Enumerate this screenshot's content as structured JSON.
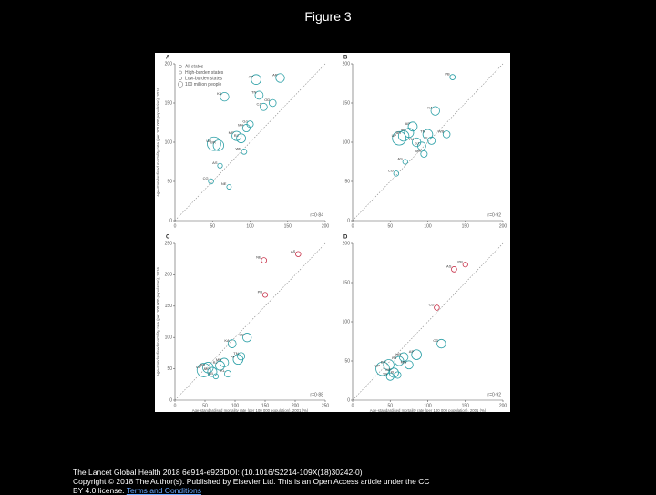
{
  "title": "Figure 3",
  "chart_data": [
    {
      "type": "scatter",
      "panel": "A",
      "xlim": [
        0,
        200
      ],
      "ylim": [
        0,
        200
      ],
      "xticks": [
        0,
        50,
        100,
        150,
        200
      ],
      "yticks": [
        0,
        50,
        100,
        150,
        200
      ],
      "ylabel": "Age-standardised mortality rate (per 100 000 population), 2016",
      "annotation": "r=0·84",
      "legend_labels": [
        "All states",
        "High-burden states",
        "Low-burden states",
        "100 million people"
      ],
      "series": [
        {
          "color": "#2a9fa6",
          "x": [
            52,
            58,
            66,
            82,
            88,
            95,
            100,
            108,
            112,
            118,
            130,
            140,
            60,
            48,
            72,
            92
          ],
          "values": [
            98,
            96,
            158,
            108,
            105,
            118,
            123,
            180,
            160,
            145,
            150,
            182,
            70,
            50,
            43,
            88
          ],
          "sizes": [
            200,
            104,
            61,
            73,
            68,
            38,
            25,
            85,
            50,
            35,
            32,
            60,
            8,
            10,
            6,
            12
          ],
          "labels": [
            "UP",
            "BR",
            "KA",
            "MP",
            "RJ",
            "MH",
            "GJ",
            "AP",
            "TN",
            "CJ",
            "OD",
            "AP",
            "AS",
            "CG",
            "NE",
            "WB"
          ]
        }
      ]
    },
    {
      "type": "scatter",
      "panel": "B",
      "xlim": [
        0,
        200
      ],
      "ylim": [
        0,
        200
      ],
      "xticks": [
        0,
        50,
        100,
        150,
        200
      ],
      "yticks": [
        0,
        50,
        100,
        150,
        200
      ],
      "annotation": "r=0·92",
      "series": [
        {
          "color": "#2a9fa6",
          "x": [
            62,
            68,
            75,
            80,
            85,
            92,
            100,
            105,
            110,
            125,
            133,
            58,
            70,
            95
          ],
          "values": [
            105,
            108,
            112,
            120,
            100,
            95,
            110,
            102,
            140,
            110,
            183,
            60,
            75,
            85
          ],
          "sizes": [
            200,
            104,
            73,
            68,
            61,
            50,
            85,
            38,
            60,
            32,
            12,
            10,
            8,
            25
          ],
          "labels": [
            "UP",
            "BR",
            "MP",
            "AP",
            "RJ",
            "GJ",
            "TN",
            "KL",
            "KA",
            "WB",
            "PB",
            "CG",
            "AS",
            "MH"
          ]
        }
      ]
    },
    {
      "type": "scatter",
      "panel": "C",
      "xlim": [
        0,
        250
      ],
      "ylim": [
        0,
        250
      ],
      "xticks": [
        0,
        50,
        100,
        150,
        200,
        250
      ],
      "yticks": [
        0,
        50,
        100,
        150,
        200,
        250
      ],
      "ylabel": "Age-standardised mortality rate (per 100 000 population), 2016",
      "xlabel": "Age-standardised mortality rate (per 100 000 population), 2001 (%)",
      "annotation": "r=0·88",
      "series": [
        {
          "color": "#2a9fa6",
          "x": [
            48,
            55,
            62,
            75,
            82,
            95,
            105,
            110,
            120,
            68,
            88
          ],
          "values": [
            48,
            52,
            45,
            55,
            60,
            90,
            65,
            70,
            100,
            38,
            42
          ],
          "sizes": [
            200,
            104,
            73,
            68,
            61,
            50,
            85,
            38,
            60,
            10,
            25
          ],
          "labels": [
            "UP",
            "BR",
            "MP",
            "RJ",
            "MH",
            "KA",
            "AP",
            "TN",
            "OD",
            "PB",
            "KL"
          ]
        },
        {
          "color": "#c8324a",
          "x": [
            148,
            205,
            150
          ],
          "values": [
            223,
            233,
            168
          ],
          "sizes": [
            12,
            10,
            8
          ],
          "labels": [
            "NE",
            "AS",
            "PB"
          ]
        }
      ]
    },
    {
      "type": "scatter",
      "panel": "D",
      "xlim": [
        0,
        200
      ],
      "ylim": [
        0,
        200
      ],
      "xticks": [
        0,
        50,
        100,
        150,
        200
      ],
      "yticks": [
        0,
        50,
        100,
        150,
        200
      ],
      "xlabel": "Age-standardised mortality rate (per 100 000 population), 2001 (%)",
      "annotation": "r=0·92",
      "series": [
        {
          "color": "#2a9fa6",
          "x": [
            40,
            48,
            55,
            62,
            68,
            75,
            85,
            118,
            50,
            60
          ],
          "values": [
            40,
            45,
            35,
            50,
            55,
            45,
            58,
            72,
            30,
            32
          ],
          "sizes": [
            200,
            104,
            73,
            68,
            61,
            50,
            85,
            60,
            38,
            25
          ],
          "labels": [
            "UP",
            "BR",
            "MP",
            "RJ",
            "HR",
            "MH",
            "AP",
            "OD",
            "TN",
            "KL"
          ]
        },
        {
          "color": "#c8324a",
          "x": [
            112,
            135,
            150
          ],
          "values": [
            118,
            167,
            173
          ],
          "sizes": [
            10,
            12,
            8
          ],
          "labels": [
            "CD",
            "AS",
            "PB"
          ]
        }
      ]
    }
  ],
  "footer": {
    "citation": "The Lancet Global Health 2018 6e914-e923DOI: (10.1016/S2214-109X(18)30242-0)",
    "copyright": "Copyright © 2018 The Author(s). Published by Elsevier Ltd. This is an Open Access article under the CC",
    "license": "BY 4.0 license.",
    "link": "Terms and Conditions"
  }
}
